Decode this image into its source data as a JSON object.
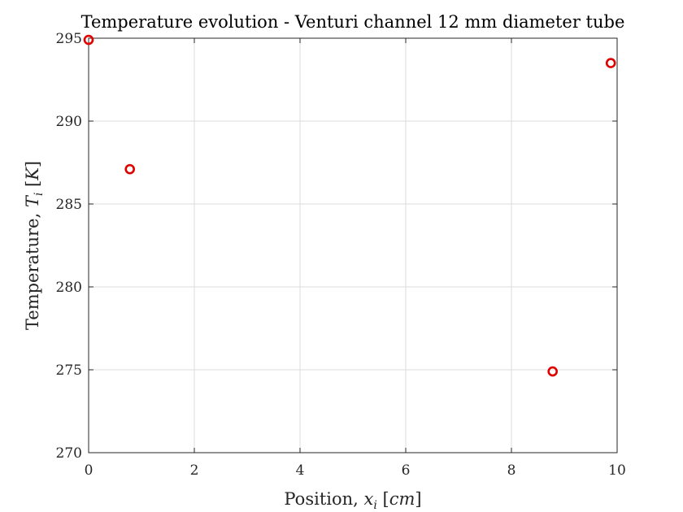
{
  "chart_data": {
    "type": "scatter",
    "title": "Temperature evolution - Venturi channel 12 mm diameter tube",
    "xlabel": {
      "prefix": "Position, ",
      "symbol": "x",
      "subscript": "i",
      "unit_open": " [",
      "unit": "cm",
      "unit_close": "]"
    },
    "ylabel": {
      "prefix": "Temperature, ",
      "symbol": "T",
      "subscript": "i",
      "unit_open": " [",
      "unit": "K",
      "unit_close": "]"
    },
    "xlim": [
      0,
      10
    ],
    "ylim": [
      270,
      295
    ],
    "xticks": [
      "0",
      "2",
      "4",
      "6",
      "8",
      "10"
    ],
    "yticks": [
      "270",
      "275",
      "280",
      "285",
      "290",
      "295"
    ],
    "grid": true,
    "x": [
      0,
      0.78,
      8.78,
      9.88
    ],
    "y": [
      294.9,
      287.1,
      274.9,
      293.5
    ],
    "marker": "circle-open",
    "marker_color": "#e00000",
    "grid_color": "#dcdcdc",
    "axis_color": "#262626"
  }
}
